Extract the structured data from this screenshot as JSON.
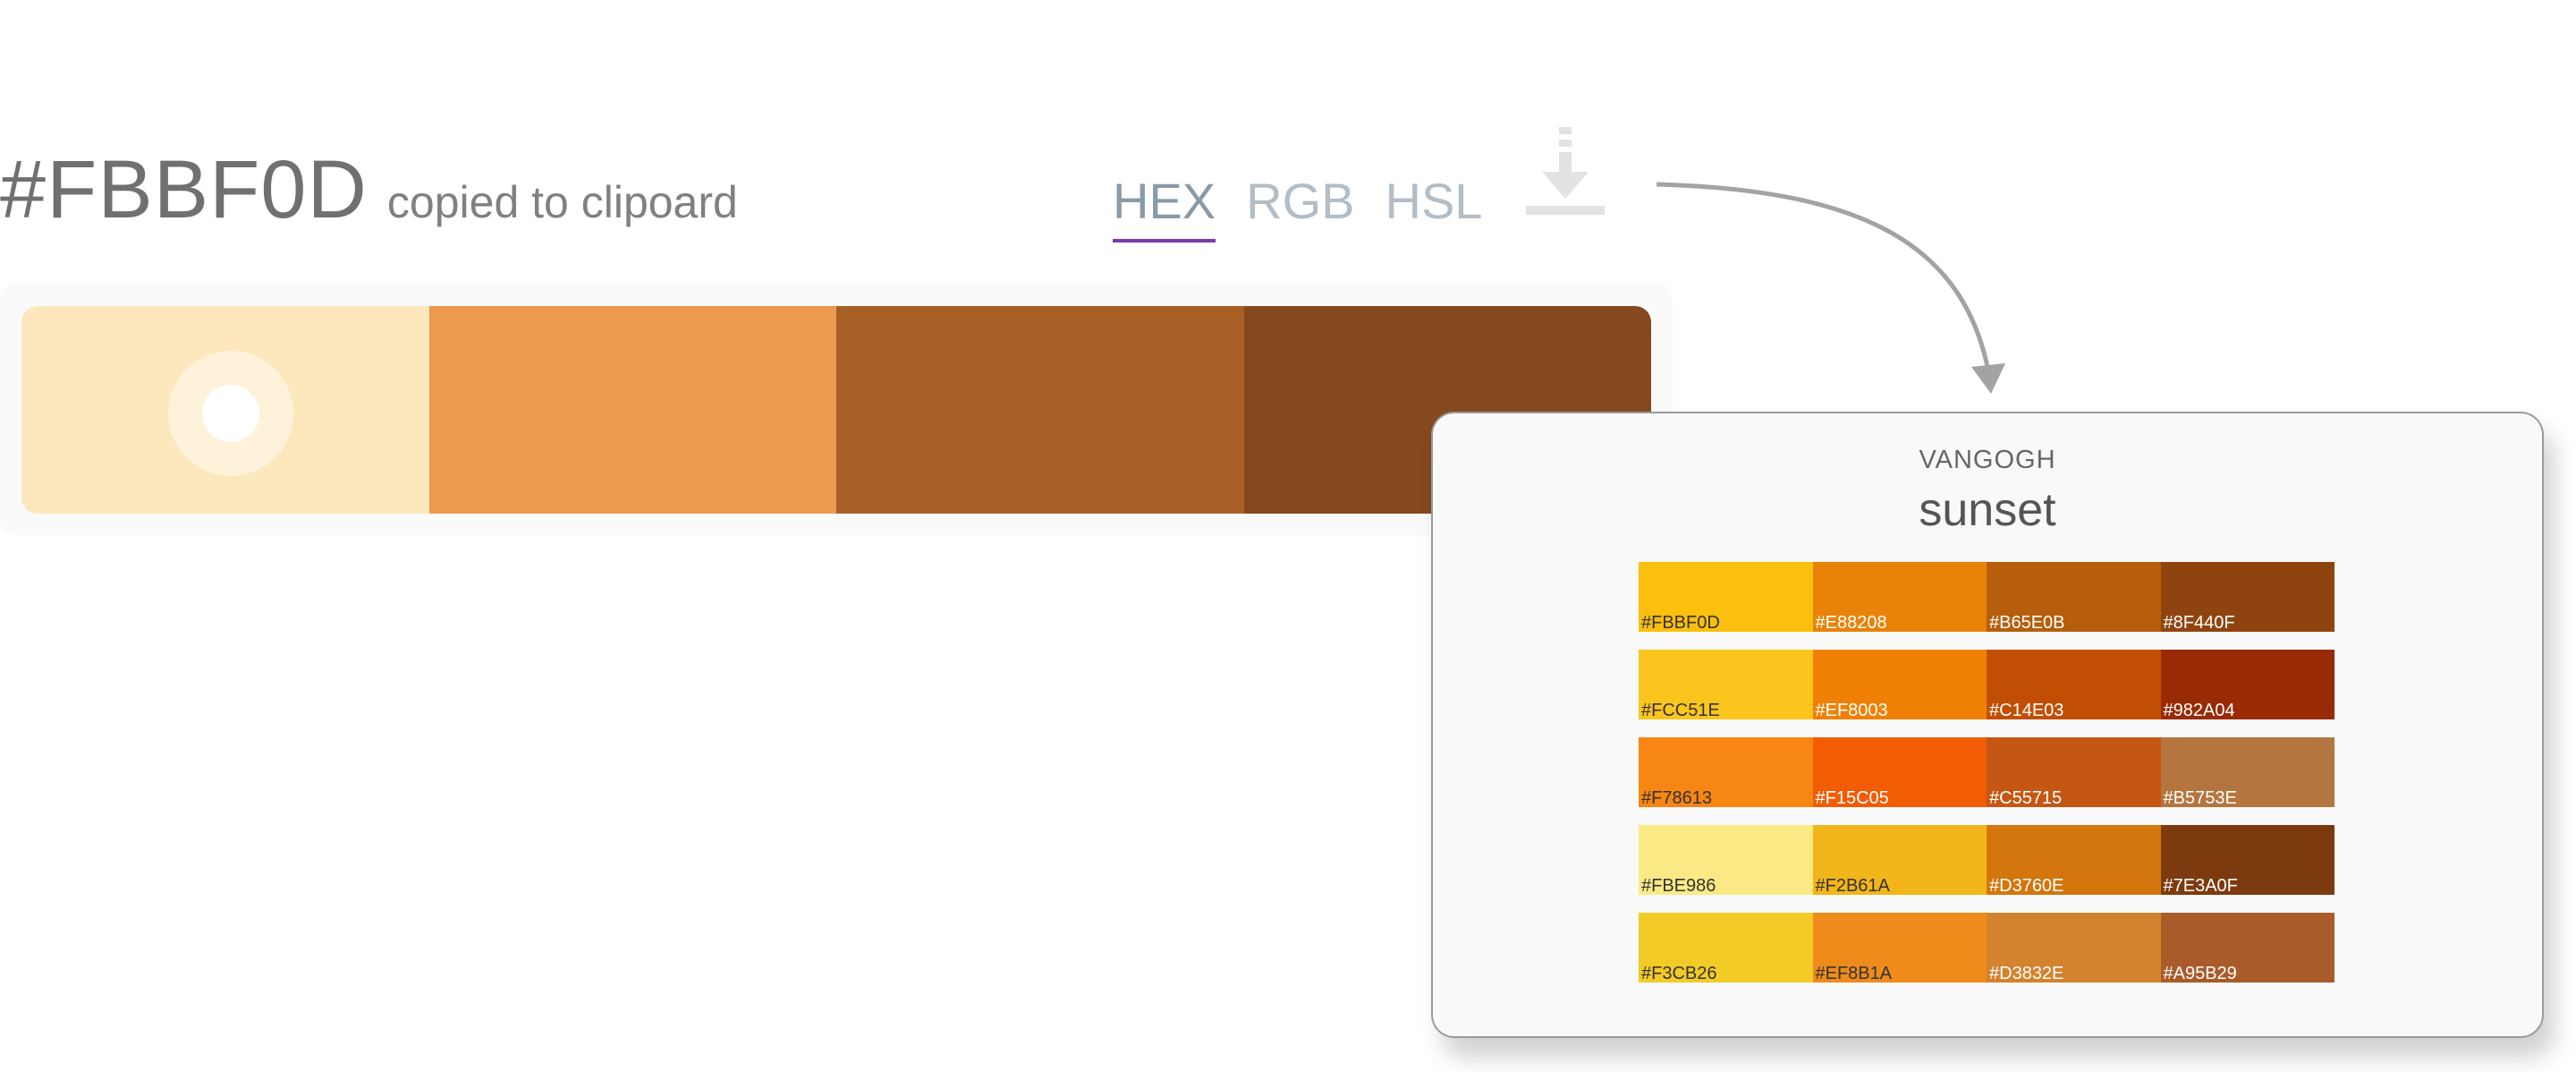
{
  "copied": {
    "hex": "#FBBF0D",
    "message": "copied to clipoard"
  },
  "format_tabs": [
    {
      "label": "HEX",
      "active": true
    },
    {
      "label": "RGB",
      "active": false
    },
    {
      "label": "HSL",
      "active": false
    }
  ],
  "download_icon": "download-icon",
  "palette": {
    "swatches": [
      "#FDE8BE",
      "#EC9A4F",
      "#A86027",
      "#85491F"
    ],
    "selected_index": 0
  },
  "card": {
    "brand": "VANGOGH",
    "name": "sunset",
    "rows": [
      [
        {
          "hex": "#FBBF0D",
          "label": "#FBBF0D",
          "text": "#333"
        },
        {
          "hex": "#E88208",
          "label": "#E88208",
          "text": "#fff"
        },
        {
          "hex": "#B65E0B",
          "label": "#B65E0B",
          "text": "#fff"
        },
        {
          "hex": "#8F440F",
          "label": "#8F440F",
          "text": "#fff"
        }
      ],
      [
        {
          "hex": "#FCC51E",
          "label": "#FCC51E",
          "text": "#333"
        },
        {
          "hex": "#EF8003",
          "label": "#EF8003",
          "text": "#fff"
        },
        {
          "hex": "#C14E03",
          "label": "#C14E03",
          "text": "#fff"
        },
        {
          "hex": "#982A04",
          "label": "#982A04",
          "text": "#fff"
        }
      ],
      [
        {
          "hex": "#F78613",
          "label": "#F78613",
          "text": "#333"
        },
        {
          "hex": "#F15C05",
          "label": "#F15C05",
          "text": "#fff"
        },
        {
          "hex": "#C55715",
          "label": "#C55715",
          "text": "#fff"
        },
        {
          "hex": "#B5753E",
          "label": "#B5753E",
          "text": "#fff"
        }
      ],
      [
        {
          "hex": "#FBE986",
          "label": "#FBE986",
          "text": "#333"
        },
        {
          "hex": "#F2B61A",
          "label": "#F2B61A",
          "text": "#333"
        },
        {
          "hex": "#D3760E",
          "label": "#D3760E",
          "text": "#fff"
        },
        {
          "hex": "#7E3A0F",
          "label": "#7E3A0F",
          "text": "#fff"
        }
      ],
      [
        {
          "hex": "#F3CB26",
          "label": "#F3CB26",
          "text": "#333"
        },
        {
          "hex": "#EF8B1A",
          "label": "#EF8B1A",
          "text": "#333"
        },
        {
          "hex": "#D3832E",
          "label": "#D3832E",
          "text": "#fff"
        },
        {
          "hex": "#A95B29",
          "label": "#A95B29",
          "text": "#fff"
        }
      ]
    ]
  }
}
